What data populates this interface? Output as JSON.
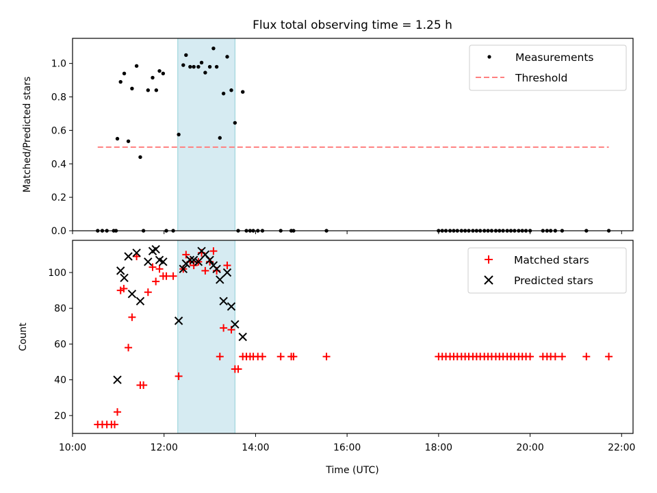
{
  "title": "Flux total observing time = 1.25 h",
  "colors": {
    "matched": "#ff0000",
    "predicted": "#000000",
    "threshold": "#ff7f7f",
    "highlight": "#add8e6"
  },
  "chart_data": [
    {
      "type": "scatter",
      "ylabel": "Matched/Predicted stars",
      "xlim": [
        10.0,
        22.25
      ],
      "ylim": [
        0.0,
        1.15
      ],
      "yticks": [
        0.0,
        0.2,
        0.4,
        0.6,
        0.8,
        1.0
      ],
      "ytick_labels": [
        "0.0",
        "0.2",
        "0.4",
        "0.6",
        "0.8",
        "1.0"
      ],
      "grid": false,
      "legend_position": "top-right",
      "highlight_span": [
        12.3,
        13.55
      ],
      "series": [
        {
          "name": "Measurements",
          "marker": "dot",
          "points": [
            [
              10.55,
              0
            ],
            [
              10.65,
              0
            ],
            [
              10.75,
              0
            ],
            [
              10.9,
              0
            ],
            [
              10.95,
              0
            ],
            [
              10.98,
              0.55
            ],
            [
              11.05,
              0.89
            ],
            [
              11.13,
              0.94
            ],
            [
              11.22,
              0.535
            ],
            [
              11.3,
              0.85
            ],
            [
              11.4,
              0.985
            ],
            [
              11.48,
              0.44
            ],
            [
              11.55,
              0
            ],
            [
              11.65,
              0.84
            ],
            [
              11.75,
              0.915
            ],
            [
              11.83,
              0.84
            ],
            [
              11.9,
              0.955
            ],
            [
              11.98,
              0.94
            ],
            [
              12.05,
              0
            ],
            [
              12.2,
              0
            ],
            [
              12.32,
              0.575
            ],
            [
              12.42,
              0.99
            ],
            [
              12.48,
              1.05
            ],
            [
              12.57,
              0.98
            ],
            [
              12.65,
              0.98
            ],
            [
              12.75,
              0.98
            ],
            [
              12.82,
              1.005
            ],
            [
              12.9,
              0.945
            ],
            [
              13.0,
              0.98
            ],
            [
              13.08,
              1.09
            ],
            [
              13.15,
              0.98
            ],
            [
              13.22,
              0.555
            ],
            [
              13.3,
              0.82
            ],
            [
              13.38,
              1.04
            ],
            [
              13.47,
              0.84
            ],
            [
              13.55,
              0.645
            ],
            [
              13.62,
              0
            ],
            [
              13.72,
              0.83
            ],
            [
              13.8,
              0
            ],
            [
              13.88,
              0
            ],
            [
              13.95,
              0
            ],
            [
              14.05,
              0
            ],
            [
              14.15,
              0
            ],
            [
              14.55,
              0
            ],
            [
              14.78,
              0
            ],
            [
              14.83,
              0
            ],
            [
              15.55,
              0
            ],
            [
              18.0,
              0
            ],
            [
              18.08,
              0
            ],
            [
              18.16,
              0
            ],
            [
              18.25,
              0
            ],
            [
              18.33,
              0
            ],
            [
              18.41,
              0
            ],
            [
              18.5,
              0
            ],
            [
              18.58,
              0
            ],
            [
              18.66,
              0
            ],
            [
              18.75,
              0
            ],
            [
              18.83,
              0
            ],
            [
              18.91,
              0
            ],
            [
              19.0,
              0
            ],
            [
              19.08,
              0
            ],
            [
              19.16,
              0
            ],
            [
              19.25,
              0
            ],
            [
              19.33,
              0
            ],
            [
              19.41,
              0
            ],
            [
              19.5,
              0
            ],
            [
              19.58,
              0
            ],
            [
              19.66,
              0
            ],
            [
              19.75,
              0
            ],
            [
              19.83,
              0
            ],
            [
              19.91,
              0
            ],
            [
              20.0,
              0
            ],
            [
              20.28,
              0
            ],
            [
              20.37,
              0
            ],
            [
              20.45,
              0
            ],
            [
              20.55,
              0
            ],
            [
              20.7,
              0
            ],
            [
              21.23,
              0
            ],
            [
              21.72,
              0
            ]
          ]
        },
        {
          "name": "Threshold",
          "marker": "dashed-line",
          "points": [
            [
              10.55,
              0.5
            ],
            [
              21.72,
              0.5
            ]
          ]
        }
      ]
    },
    {
      "type": "scatter",
      "xlabel": "Time (UTC)",
      "ylabel": "Count",
      "xlim": [
        10.0,
        22.25
      ],
      "ylim": [
        10,
        118
      ],
      "yticks": [
        20,
        40,
        60,
        80,
        100
      ],
      "ytick_labels": [
        "20",
        "40",
        "60",
        "80",
        "100"
      ],
      "xticks": [
        10,
        12,
        14,
        16,
        18,
        20,
        22
      ],
      "xtick_labels": [
        "10:00",
        "12:00",
        "14:00",
        "16:00",
        "18:00",
        "20:00",
        "22:00"
      ],
      "grid": false,
      "legend_position": "top-right",
      "highlight_span": [
        12.3,
        13.55
      ],
      "series": [
        {
          "name": "Matched stars",
          "marker": "plus",
          "points": [
            [
              10.55,
              15
            ],
            [
              10.65,
              15
            ],
            [
              10.75,
              15
            ],
            [
              10.85,
              15
            ],
            [
              10.92,
              15
            ],
            [
              10.98,
              22
            ],
            [
              11.05,
              90
            ],
            [
              11.12,
              91
            ],
            [
              11.22,
              58
            ],
            [
              11.3,
              75
            ],
            [
              11.4,
              109
            ],
            [
              11.48,
              37
            ],
            [
              11.55,
              37
            ],
            [
              11.65,
              89
            ],
            [
              11.75,
              103
            ],
            [
              11.82,
              95
            ],
            [
              11.9,
              102
            ],
            [
              11.98,
              98
            ],
            [
              12.05,
              98
            ],
            [
              12.2,
              98
            ],
            [
              12.32,
              42
            ],
            [
              12.42,
              102
            ],
            [
              12.48,
              110
            ],
            [
              12.57,
              106
            ],
            [
              12.65,
              104
            ],
            [
              12.75,
              106
            ],
            [
              12.82,
              111
            ],
            [
              12.9,
              101
            ],
            [
              13.0,
              106
            ],
            [
              13.08,
              112
            ],
            [
              13.15,
              101
            ],
            [
              13.22,
              53
            ],
            [
              13.3,
              69
            ],
            [
              13.38,
              104
            ],
            [
              13.47,
              68
            ],
            [
              13.55,
              46
            ],
            [
              13.62,
              46
            ],
            [
              13.72,
              53
            ],
            [
              13.8,
              53
            ],
            [
              13.88,
              53
            ],
            [
              13.95,
              53
            ],
            [
              14.05,
              53
            ],
            [
              14.15,
              53
            ],
            [
              14.55,
              53
            ],
            [
              14.78,
              53
            ],
            [
              14.83,
              53
            ],
            [
              15.55,
              53
            ],
            [
              18.0,
              53
            ],
            [
              18.08,
              53
            ],
            [
              18.16,
              53
            ],
            [
              18.25,
              53
            ],
            [
              18.33,
              53
            ],
            [
              18.41,
              53
            ],
            [
              18.5,
              53
            ],
            [
              18.58,
              53
            ],
            [
              18.66,
              53
            ],
            [
              18.75,
              53
            ],
            [
              18.83,
              53
            ],
            [
              18.91,
              53
            ],
            [
              19.0,
              53
            ],
            [
              19.08,
              53
            ],
            [
              19.16,
              53
            ],
            [
              19.25,
              53
            ],
            [
              19.33,
              53
            ],
            [
              19.41,
              53
            ],
            [
              19.5,
              53
            ],
            [
              19.58,
              53
            ],
            [
              19.66,
              53
            ],
            [
              19.75,
              53
            ],
            [
              19.83,
              53
            ],
            [
              19.91,
              53
            ],
            [
              20.0,
              53
            ],
            [
              20.28,
              53
            ],
            [
              20.37,
              53
            ],
            [
              20.45,
              53
            ],
            [
              20.55,
              53
            ],
            [
              20.7,
              53
            ],
            [
              21.23,
              53
            ],
            [
              21.72,
              53
            ]
          ]
        },
        {
          "name": "Predicted stars",
          "marker": "x",
          "points": [
            [
              10.98,
              40
            ],
            [
              11.05,
              101
            ],
            [
              11.13,
              97
            ],
            [
              11.22,
              109
            ],
            [
              11.3,
              88
            ],
            [
              11.4,
              111
            ],
            [
              11.48,
              84
            ],
            [
              11.65,
              106
            ],
            [
              11.75,
              112
            ],
            [
              11.82,
              113
            ],
            [
              11.9,
              107
            ],
            [
              11.98,
              106
            ],
            [
              12.32,
              73
            ],
            [
              12.42,
              102
            ],
            [
              12.48,
              105
            ],
            [
              12.57,
              107
            ],
            [
              12.65,
              107
            ],
            [
              12.75,
              106
            ],
            [
              12.82,
              112
            ],
            [
              12.9,
              110
            ],
            [
              13.0,
              107
            ],
            [
              13.08,
              104
            ],
            [
              13.15,
              102
            ],
            [
              13.22,
              96
            ],
            [
              13.3,
              84
            ],
            [
              13.38,
              100
            ],
            [
              13.47,
              81
            ],
            [
              13.55,
              71
            ],
            [
              13.72,
              64
            ]
          ]
        }
      ]
    }
  ]
}
